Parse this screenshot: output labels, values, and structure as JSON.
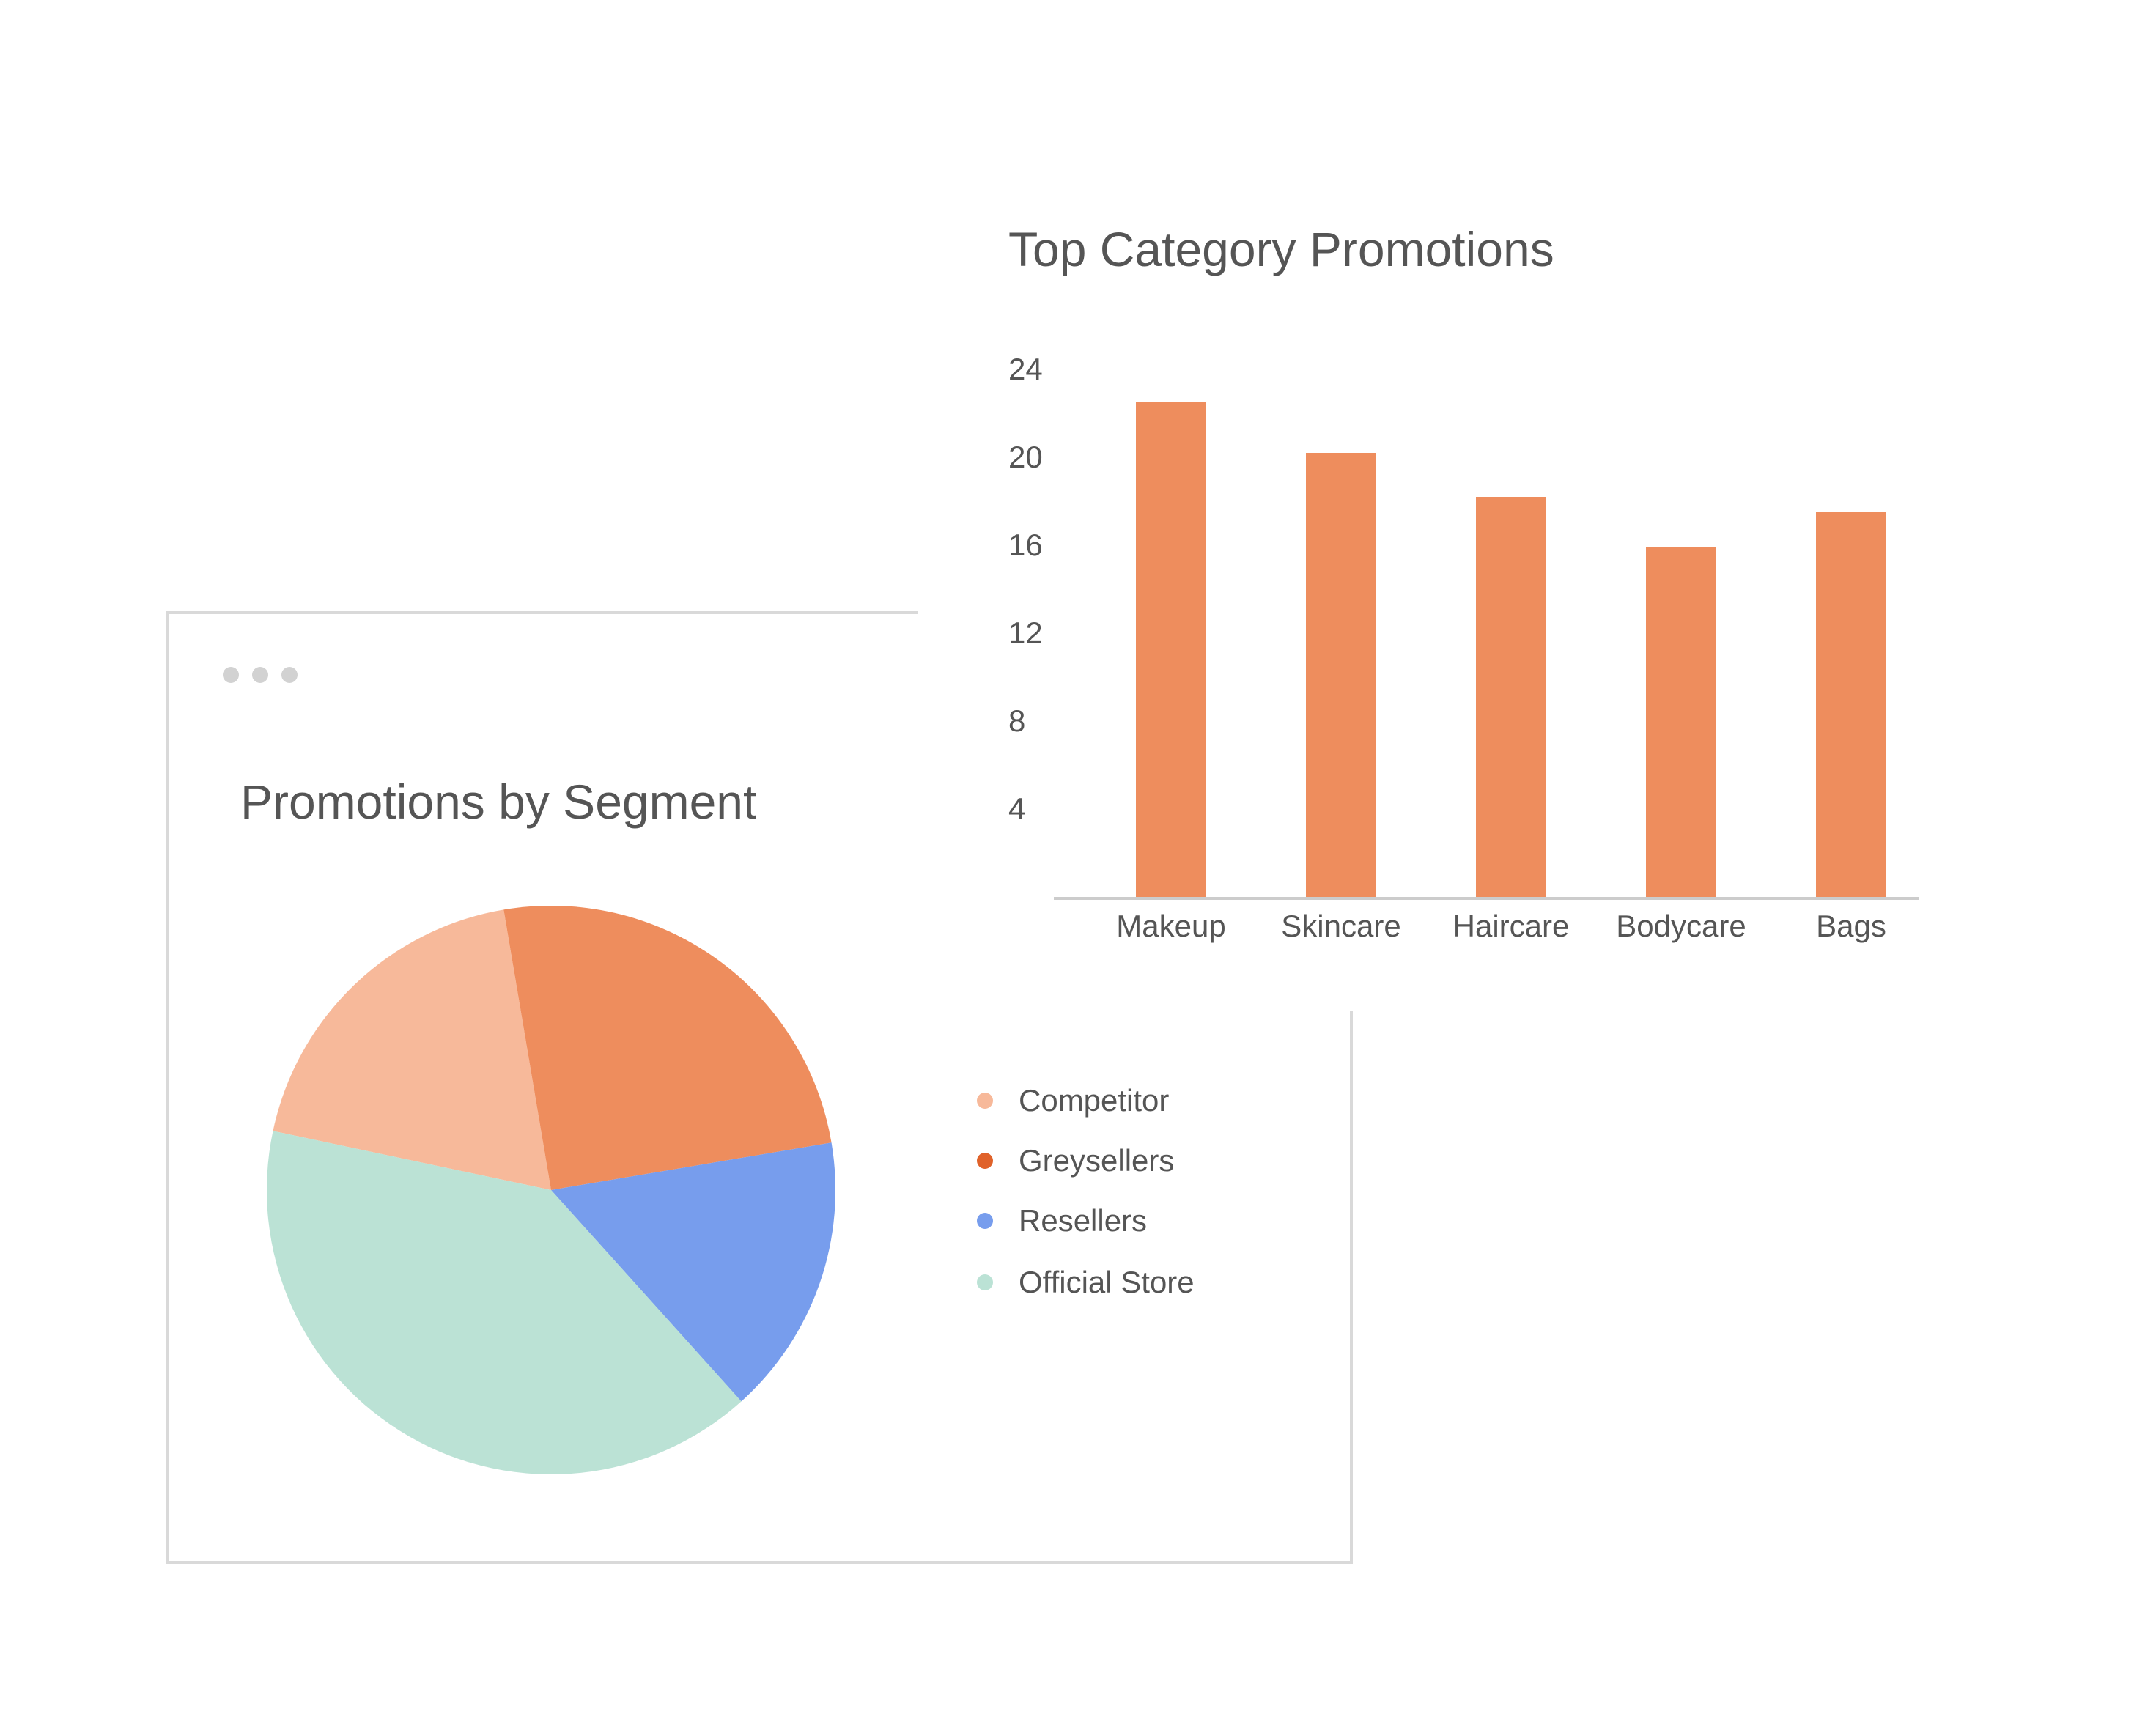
{
  "bar_card": {
    "title": "Top Category Promotions"
  },
  "pie_card": {
    "title": "Promotions by Segment"
  },
  "chart_data": [
    {
      "type": "bar",
      "title": "Top Category Promotions",
      "categories": [
        "Makeup",
        "Skincare",
        "Haircare",
        "Bodycare",
        "Bags"
      ],
      "values": [
        22.5,
        20.2,
        18.2,
        15.9,
        17.5
      ],
      "color": "#ee8d5d",
      "yticks": [
        4,
        8,
        12,
        16,
        20,
        24
      ],
      "ylim": [
        0,
        24
      ],
      "grid": false
    },
    {
      "type": "pie",
      "title": "Promotions by Segment",
      "labels": [
        "Competitor",
        "Greysellers",
        "Resellers",
        "Official Store"
      ],
      "values": [
        19,
        25,
        16,
        40
      ],
      "slice_colors": [
        "#f7b99a",
        "#ee8d5d",
        "#779ded",
        "#bbe2d5"
      ],
      "legend_colors": [
        "#f7b99a",
        "#e0622a",
        "#779ded",
        "#bbe2d5"
      ],
      "legend_position": "right"
    }
  ]
}
